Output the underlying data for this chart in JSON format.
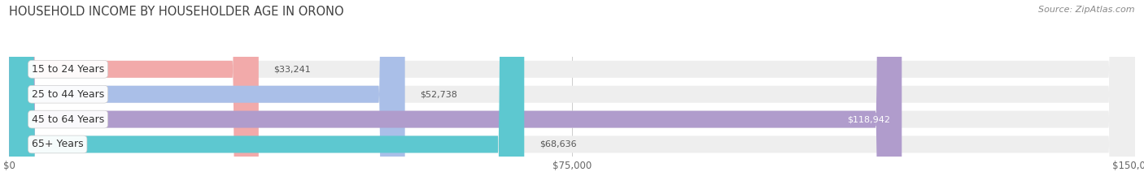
{
  "title": "HOUSEHOLD INCOME BY HOUSEHOLDER AGE IN ORONO",
  "source_text": "Source: ZipAtlas.com",
  "categories": [
    "15 to 24 Years",
    "25 to 44 Years",
    "45 to 64 Years",
    "65+ Years"
  ],
  "values": [
    33241,
    52738,
    118942,
    68636
  ],
  "bar_colors": [
    "#f2aaaa",
    "#aabfe8",
    "#b09ccc",
    "#5dc8d0"
  ],
  "bar_bg_color": "#eeeeee",
  "label_colors": [
    "#555555",
    "#555555",
    "#ffffff",
    "#555555"
  ],
  "x_max": 150000,
  "x_ticks": [
    0,
    75000,
    150000
  ],
  "x_tick_labels": [
    "$0",
    "$75,000",
    "$150,000"
  ],
  "value_labels": [
    "$33,241",
    "$52,738",
    "$118,942",
    "$68,636"
  ],
  "background_color": "#ffffff",
  "title_fontsize": 10.5,
  "source_fontsize": 8,
  "bar_label_fontsize": 8,
  "category_fontsize": 9,
  "tick_fontsize": 8.5,
  "bar_height": 0.68,
  "figsize": [
    14.06,
    2.33
  ],
  "dpi": 100
}
